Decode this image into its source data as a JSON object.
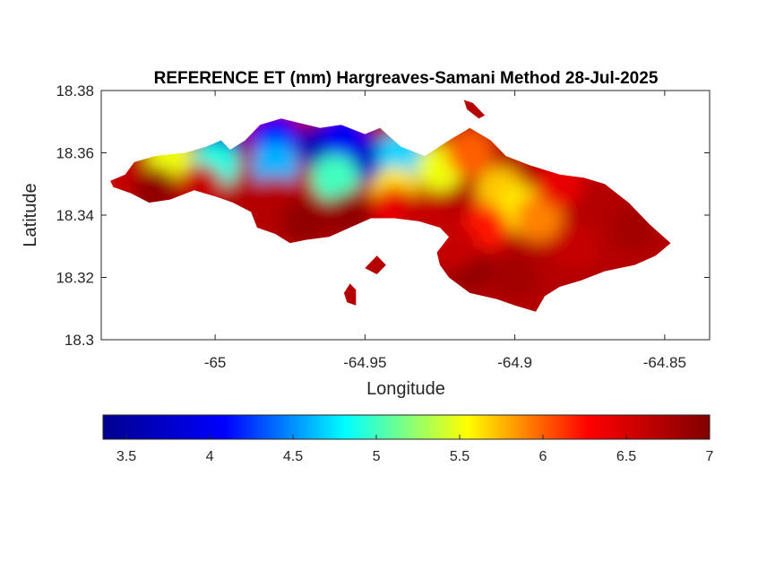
{
  "chart_data": {
    "type": "heatmap",
    "title": "REFERENCE ET (mm) Hargreaves-Samani Method  28-Jul-2025",
    "xlabel": "Longitude",
    "ylabel": "Latitude",
    "xlim": [
      -65.038,
      -64.835
    ],
    "ylim": [
      18.3,
      18.38
    ],
    "xticks": [
      -65,
      -64.95,
      -64.9,
      -64.85
    ],
    "xtick_labels": [
      "-65",
      "-64.95",
      "-64.9",
      "-64.85"
    ],
    "yticks": [
      18.3,
      18.32,
      18.34,
      18.36,
      18.38
    ],
    "ytick_labels": [
      "18.3",
      "18.32",
      "18.34",
      "18.36",
      "18.38"
    ],
    "grid": false,
    "colormap": "jet",
    "colorbar": {
      "orientation": "horizontal",
      "placement": "bottom",
      "range": [
        3.36,
        7.0
      ],
      "ticks": [
        3.5,
        4,
        4.5,
        5,
        5.5,
        6,
        6.5,
        7
      ],
      "tick_labels": [
        "3.5",
        "4",
        "4.5",
        "5",
        "5.5",
        "6",
        "6.5",
        "7"
      ]
    },
    "colormap_stops": [
      "#00008f",
      "#0000ff",
      "#00ffff",
      "#ffff00",
      "#ff0000",
      "#800000"
    ],
    "land_outline": [
      [
        -65.035,
        18.351
      ],
      [
        -65.03,
        18.353
      ],
      [
        -65.027,
        18.357
      ],
      [
        -65.02,
        18.359
      ],
      [
        -65.01,
        18.36
      ],
      [
        -65.003,
        18.362
      ],
      [
        -64.998,
        18.364
      ],
      [
        -64.995,
        18.361
      ],
      [
        -64.99,
        18.364
      ],
      [
        -64.985,
        18.369
      ],
      [
        -64.978,
        18.371
      ],
      [
        -64.965,
        18.368
      ],
      [
        -64.958,
        18.369
      ],
      [
        -64.95,
        18.366
      ],
      [
        -64.945,
        18.368
      ],
      [
        -64.938,
        18.362
      ],
      [
        -64.93,
        18.359
      ],
      [
        -64.922,
        18.364
      ],
      [
        -64.915,
        18.368
      ],
      [
        -64.908,
        18.364
      ],
      [
        -64.903,
        18.359
      ],
      [
        -64.895,
        18.356
      ],
      [
        -64.885,
        18.353
      ],
      [
        -64.877,
        18.352
      ],
      [
        -64.87,
        18.35
      ],
      [
        -64.862,
        18.344
      ],
      [
        -64.855,
        18.337
      ],
      [
        -64.848,
        18.331
      ],
      [
        -64.853,
        18.327
      ],
      [
        -64.86,
        18.324
      ],
      [
        -64.87,
        18.322
      ],
      [
        -64.878,
        18.319
      ],
      [
        -64.885,
        18.317
      ],
      [
        -64.89,
        18.314
      ],
      [
        -64.893,
        18.309
      ],
      [
        -64.9,
        18.311
      ],
      [
        -64.906,
        18.313
      ],
      [
        -64.915,
        18.315
      ],
      [
        -64.922,
        18.32
      ],
      [
        -64.925,
        18.324
      ],
      [
        -64.926,
        18.328
      ],
      [
        -64.922,
        18.333
      ],
      [
        -64.925,
        18.336
      ],
      [
        -64.932,
        18.338
      ],
      [
        -64.94,
        18.339
      ],
      [
        -64.948,
        18.339
      ],
      [
        -64.955,
        18.336
      ],
      [
        -64.962,
        18.333
      ],
      [
        -64.97,
        18.332
      ],
      [
        -64.975,
        18.331
      ],
      [
        -64.98,
        18.334
      ],
      [
        -64.986,
        18.336
      ],
      [
        -64.988,
        18.341
      ],
      [
        -64.994,
        18.344
      ],
      [
        -65.0,
        18.346
      ],
      [
        -65.007,
        18.348
      ],
      [
        -65.015,
        18.345
      ],
      [
        -65.022,
        18.344
      ],
      [
        -65.028,
        18.347
      ],
      [
        -65.034,
        18.349
      ]
    ],
    "islets": [
      [
        [
          -64.95,
          18.323
        ],
        [
          -64.948,
          18.325
        ],
        [
          -64.946,
          18.327
        ],
        [
          -64.943,
          18.324
        ],
        [
          -64.946,
          18.321
        ]
      ],
      [
        [
          -64.957,
          18.315
        ],
        [
          -64.955,
          18.318
        ],
        [
          -64.953,
          18.316
        ],
        [
          -64.953,
          18.311
        ],
        [
          -64.956,
          18.312
        ]
      ],
      [
        [
          -64.917,
          18.377
        ],
        [
          -64.914,
          18.376
        ],
        [
          -64.91,
          18.372
        ],
        [
          -64.912,
          18.371
        ],
        [
          -64.916,
          18.374
        ]
      ]
    ],
    "samples": [
      {
        "lon": -64.965,
        "lat": 18.362,
        "value": 3.6
      },
      {
        "lon": -64.948,
        "lat": 18.358,
        "value": 3.7
      },
      {
        "lon": -64.98,
        "lat": 18.365,
        "value": 4.1
      },
      {
        "lon": -64.957,
        "lat": 18.366,
        "value": 4.0
      },
      {
        "lon": -64.938,
        "lat": 18.359,
        "value": 4.7
      },
      {
        "lon": -64.998,
        "lat": 18.363,
        "value": 3.7
      },
      {
        "lon": -65.015,
        "lat": 18.357,
        "value": 5.5
      },
      {
        "lon": -65.0,
        "lat": 18.356,
        "value": 4.9
      },
      {
        "lon": -64.98,
        "lat": 18.356,
        "value": 4.6
      },
      {
        "lon": -64.96,
        "lat": 18.352,
        "value": 5.0
      },
      {
        "lon": -64.94,
        "lat": 18.348,
        "value": 5.6
      },
      {
        "lon": -64.925,
        "lat": 18.355,
        "value": 5.5
      },
      {
        "lon": -64.915,
        "lat": 18.36,
        "value": 6.0
      },
      {
        "lon": -64.905,
        "lat": 18.348,
        "value": 5.7
      },
      {
        "lon": -64.898,
        "lat": 18.342,
        "value": 5.6
      },
      {
        "lon": -64.892,
        "lat": 18.339,
        "value": 5.9
      },
      {
        "lon": -64.91,
        "lat": 18.336,
        "value": 6.2
      },
      {
        "lon": -64.885,
        "lat": 18.35,
        "value": 6.4
      },
      {
        "lon": -64.87,
        "lat": 18.345,
        "value": 6.7
      },
      {
        "lon": -64.86,
        "lat": 18.336,
        "value": 6.8
      },
      {
        "lon": -64.88,
        "lat": 18.33,
        "value": 6.6
      },
      {
        "lon": -64.9,
        "lat": 18.32,
        "value": 6.8
      },
      {
        "lon": -64.915,
        "lat": 18.323,
        "value": 6.9
      },
      {
        "lon": -64.92,
        "lat": 18.33,
        "value": 6.6
      },
      {
        "lon": -65.03,
        "lat": 18.35,
        "value": 6.6
      },
      {
        "lon": -65.02,
        "lat": 18.348,
        "value": 6.9
      },
      {
        "lon": -65.005,
        "lat": 18.349,
        "value": 6.6
      },
      {
        "lon": -64.98,
        "lat": 18.345,
        "value": 6.7
      },
      {
        "lon": -64.97,
        "lat": 18.338,
        "value": 6.9
      },
      {
        "lon": -64.955,
        "lat": 18.34,
        "value": 6.9
      },
      {
        "lon": -64.94,
        "lat": 18.342,
        "value": 6.4
      },
      {
        "lon": -64.93,
        "lat": 18.34,
        "value": 6.6
      }
    ]
  }
}
